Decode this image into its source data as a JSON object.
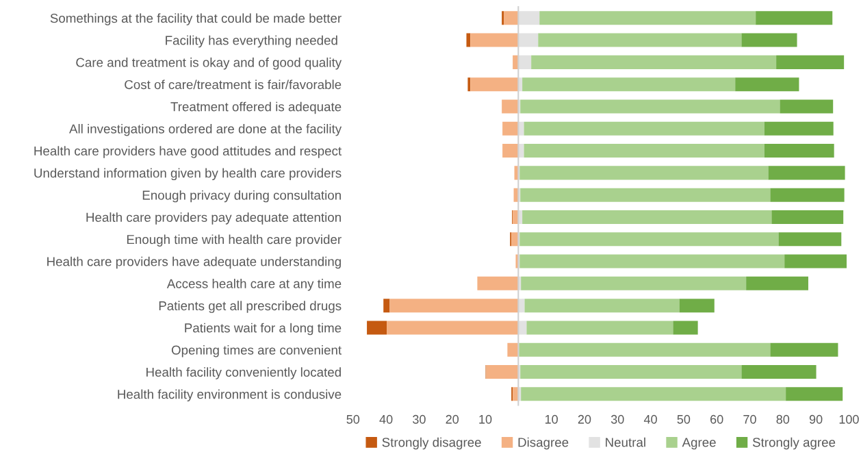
{
  "chart_data": {
    "type": "bar",
    "orientation": "horizontal",
    "categories": [
      "Somethings at the facility that could be made better",
      "Facility has everything needed ",
      "Care and treatment is okay and of good quality",
      "Cost of care/treatment is fair/favorable",
      "Treatment offered is adequate",
      "All investigations ordered are done at the facility",
      "Health care providers have good attitudes and respect",
      "Understand information given by health care providers",
      "Enough privacy during consultation",
      "Health care providers pay adequate attention",
      "Enough time with health care provider",
      "Health care providers have adequate understanding",
      "Access health care at any time",
      "Patients get all prescribed drugs",
      "Patients wait for a long time",
      "Opening times are convenient",
      "Health facility conveniently located",
      "Health facility environment is condusive"
    ],
    "series": [
      {
        "name": "Strongly disagree",
        "color": "#c55a11",
        "values": [
          -0.6,
          -1.2,
          null,
          -0.8,
          null,
          null,
          null,
          null,
          null,
          -0.2,
          -0.4,
          null,
          null,
          -1.9,
          -6.0,
          null,
          -0.2,
          -0.4
        ],
        "base": [
          -4.4,
          -14.5,
          null,
          -14.5,
          null,
          null,
          null,
          null,
          null,
          -1.7,
          -2.1,
          null,
          null,
          -38.9,
          -39.8,
          null,
          -9.7,
          -1.7
        ]
      },
      {
        "name": "Disagree",
        "color": "#f4b183",
        "values": [
          -4.4,
          -14.5,
          -1.7,
          -14.5,
          -5.0,
          -4.8,
          -4.8,
          -1.2,
          -1.4,
          -1.7,
          -2.1,
          -0.8,
          -12.4,
          -38.9,
          -39.8,
          -3.3,
          -9.7,
          -1.7
        ],
        "base": [
          0,
          0,
          0,
          0,
          0,
          0,
          0,
          0,
          0,
          0,
          0,
          0,
          0,
          0,
          0,
          0,
          0,
          0
        ]
      },
      {
        "name": "Neutral",
        "color": "#e2e2e2",
        "values": [
          6.4,
          6.0,
          3.9,
          1.2,
          0.6,
          1.7,
          1.7,
          0.4,
          0.6,
          1.2,
          0.4,
          0.4,
          0.8,
          1.9,
          2.5,
          0.2,
          0.6,
          0.8
        ],
        "base": [
          0,
          0,
          0,
          0,
          0,
          0,
          0,
          0,
          0,
          0,
          0,
          0,
          0,
          0,
          0,
          0,
          0,
          0
        ]
      },
      {
        "name": "Agree",
        "color": "#a9d18e",
        "values": [
          65.4,
          61.5,
          74.1,
          64.4,
          78.5,
          72.7,
          72.7,
          75.2,
          75.6,
          75.4,
          78.3,
          80.1,
          68.1,
          46.8,
          44.3,
          76.0,
          66.9,
          80.1
        ],
        "base": [
          6.4,
          6.0,
          3.9,
          1.2,
          0.6,
          1.7,
          1.7,
          0.4,
          0.6,
          1.2,
          0.4,
          0.4,
          0.8,
          1.9,
          2.5,
          0.2,
          0.6,
          0.8
        ]
      },
      {
        "name": "Strongly agree",
        "color": "#70ad47",
        "values": [
          23.2,
          16.8,
          20.5,
          19.3,
          16.1,
          20.9,
          21.1,
          23.2,
          22.4,
          21.7,
          19.0,
          18.8,
          18.8,
          10.6,
          7.5,
          20.5,
          22.6,
          17.2
        ],
        "base": [
          71.8,
          67.5,
          78.0,
          65.6,
          79.1,
          74.4,
          74.4,
          75.6,
          76.2,
          76.6,
          78.7,
          80.5,
          68.9,
          48.7,
          46.8,
          76.2,
          67.5,
          80.9
        ]
      }
    ],
    "xlim": [
      -50,
      100
    ],
    "xticks": [
      {
        "value": -50,
        "label": "50"
      },
      {
        "value": -40,
        "label": "40"
      },
      {
        "value": -30,
        "label": "30"
      },
      {
        "value": -20,
        "label": "20"
      },
      {
        "value": -10,
        "label": "10"
      },
      10,
      20,
      30,
      40,
      50,
      60,
      70,
      80,
      90,
      100
    ],
    "grid": false,
    "legend": "bottom"
  }
}
